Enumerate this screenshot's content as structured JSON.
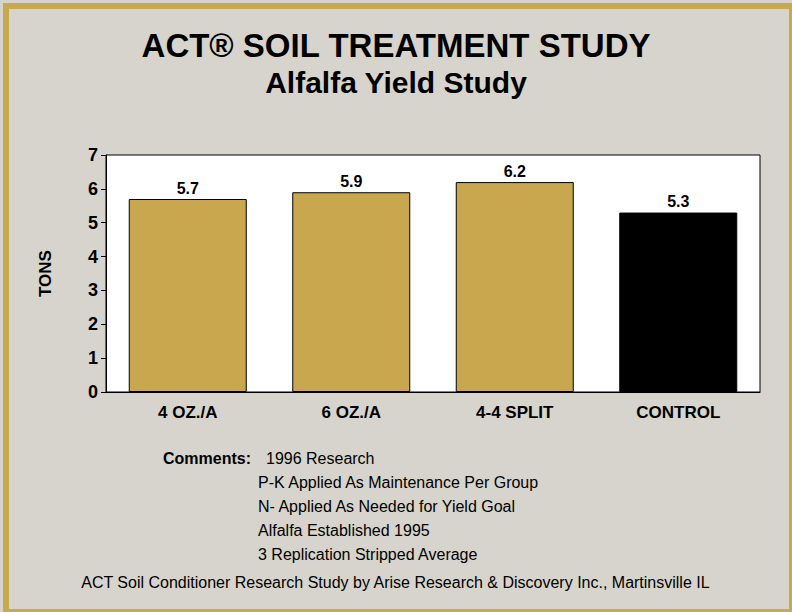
{
  "chart_data": {
    "type": "bar",
    "title": "ACT® SOIL TREATMENT STUDY",
    "subtitle": "Alfalfa Yield Study",
    "y_label": "TONS",
    "categories": [
      "4 OZ./A",
      "6 OZ./A",
      "4-4 SPLIT",
      "CONTROL"
    ],
    "values": [
      5.7,
      5.9,
      6.2,
      5.3
    ],
    "colors": [
      "#c9a74e",
      "#c9a74e",
      "#c9a74e",
      "#000000"
    ],
    "ylim": [
      0,
      7
    ],
    "yticks": [
      0,
      1,
      2,
      3,
      4,
      5,
      6,
      7
    ],
    "grid": false,
    "data_labels": true,
    "annotations": {
      "label": "Comments:",
      "lines": [
        "1996 Research",
        "P-K Applied As Maintenance Per Group",
        "N- Applied As Needed for Yield Goal",
        "Alfalfa Established 1995",
        "3 Replication Stripped Average"
      ],
      "source": "ACT Soil Conditioner Research Study by Arise Research & Discovery Inc., Martinsville IL"
    }
  }
}
